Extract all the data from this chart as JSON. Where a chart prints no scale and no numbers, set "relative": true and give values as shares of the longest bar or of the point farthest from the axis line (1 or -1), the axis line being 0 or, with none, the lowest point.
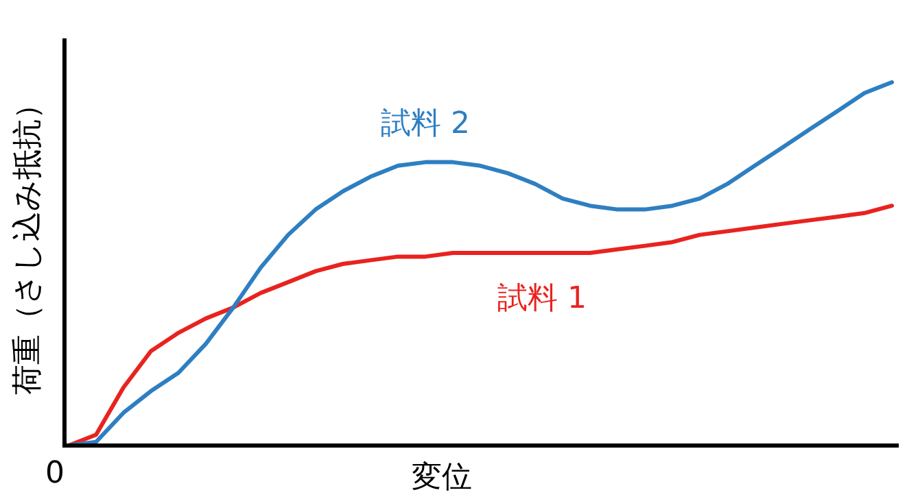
{
  "chart_data": {
    "type": "line",
    "relative": true,
    "xlabel": "変位",
    "ylabel": "荷重（さし込み抵抗）",
    "annotations": [
      "0"
    ],
    "categories": [
      null,
      null,
      null,
      null,
      null,
      null,
      null,
      null,
      null,
      null,
      null,
      null,
      null,
      null,
      null,
      null,
      null,
      null,
      null,
      null,
      null,
      null,
      null,
      null,
      null,
      null,
      null,
      null,
      null,
      null,
      null
    ],
    "series": [
      {
        "name": "試料 1",
        "color": "#e8231f",
        "values": [
          0,
          0.03,
          0.16,
          0.26,
          0.31,
          0.35,
          0.38,
          0.42,
          0.45,
          0.48,
          0.5,
          0.51,
          0.52,
          0.52,
          0.53,
          0.53,
          0.53,
          0.53,
          0.53,
          0.53,
          0.54,
          0.55,
          0.56,
          0.58,
          0.59,
          0.6,
          0.61,
          0.62,
          0.63,
          0.64,
          0.66
        ]
      },
      {
        "name": "試料 2",
        "color": "#2e7fc1",
        "values": [
          0,
          0.01,
          0.09,
          0.15,
          0.2,
          0.28,
          0.38,
          0.49,
          0.58,
          0.65,
          0.7,
          0.74,
          0.77,
          0.78,
          0.78,
          0.77,
          0.75,
          0.72,
          0.68,
          0.66,
          0.65,
          0.65,
          0.66,
          0.68,
          0.72,
          0.77,
          0.82,
          0.87,
          0.92,
          0.97,
          1
        ]
      }
    ]
  }
}
